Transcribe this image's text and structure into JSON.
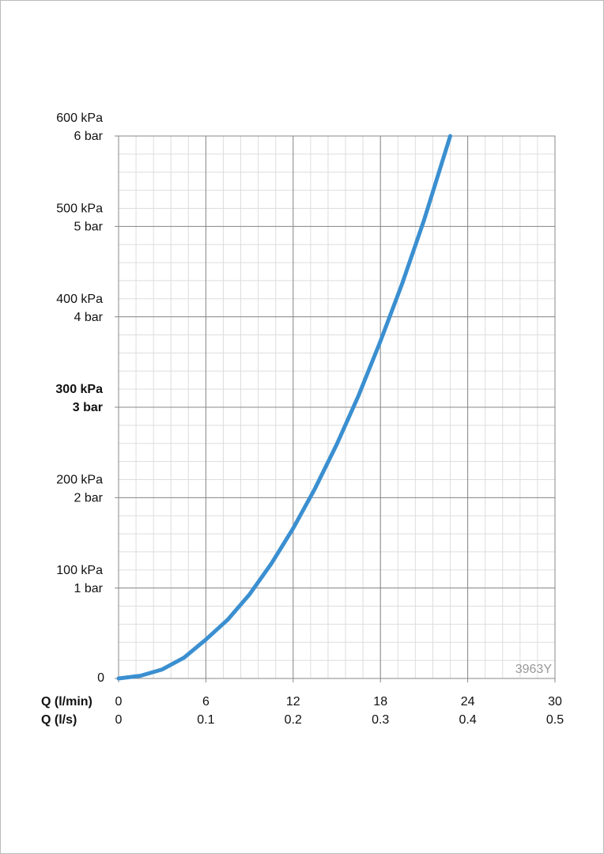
{
  "chart_data": {
    "type": "line",
    "xlabel": "Q (l/min)",
    "x2label": "Q (l/s)",
    "x": [
      0,
      1.5,
      3,
      4.5,
      6,
      7.5,
      9,
      10.5,
      12,
      13.5,
      15,
      16.5,
      18,
      19.5,
      21,
      22.8
    ],
    "values": [
      0,
      3,
      10,
      23,
      43,
      65,
      93,
      127,
      166,
      210,
      259,
      313,
      373,
      437,
      507,
      600
    ],
    "color": "#3a8fd0",
    "xlim": [
      0,
      30
    ],
    "xticks": [
      0,
      6,
      12,
      18,
      24,
      30
    ],
    "x2lim": [
      0,
      0.5
    ],
    "x2ticks": [
      0,
      0.1,
      0.2,
      0.3,
      0.4,
      0.5
    ],
    "ylim": [
      0,
      600
    ],
    "yticks": [
      0,
      {
        "value": 100,
        "label": "100 kPa"
      },
      {
        "value": 200,
        "label": "200 kPa"
      },
      {
        "value": 300,
        "label": "300 kPa"
      },
      {
        "value": 400,
        "label": "400 kPa"
      },
      {
        "value": 500,
        "label": "500 kPa"
      },
      {
        "value": 600,
        "label": "600 kPa"
      }
    ],
    "ytick_bar_labels": [
      null,
      "1 bar",
      "2 bar",
      "3 bar",
      "4 bar",
      "5 bar",
      "6 bar"
    ],
    "emphasized_ytick": 300,
    "grid": true,
    "minor_xstep": 1.2,
    "minor_ystep": 20,
    "annotation": "3963Y"
  }
}
